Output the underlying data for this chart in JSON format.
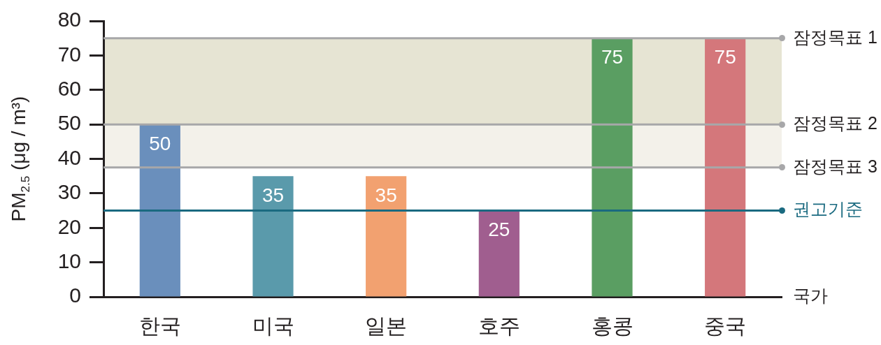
{
  "chart_data": {
    "type": "bar",
    "ylabel": "PM$_{2.5}$ (μg / m³)",
    "xlabel": "국가",
    "categories": [
      "한국",
      "미국",
      "일본",
      "호주",
      "홍콩",
      "중국"
    ],
    "values": [
      50,
      35,
      35,
      25,
      75,
      75
    ],
    "colors": [
      "#6a8fbc",
      "#5a9aab",
      "#f2a170",
      "#a05e8f",
      "#5a9e62",
      "#d4777b"
    ],
    "ylim": [
      0,
      80
    ],
    "yticks": [
      0,
      10,
      20,
      30,
      40,
      50,
      60,
      70,
      80
    ],
    "data_labels": true,
    "ref_lines": [
      {
        "axis": "y",
        "value": 75,
        "label": "잠정목표 1",
        "color": "#a7a7a9"
      },
      {
        "axis": "y",
        "value": 50,
        "label": "잠정목표 2",
        "color": "#a7a7a9"
      },
      {
        "axis": "y",
        "value": 37.5,
        "label": "잠정목표 3",
        "color": "#a7a7a9"
      },
      {
        "axis": "y",
        "value": 25,
        "label": "권고기준",
        "color": "#1a6a80"
      }
    ],
    "bands": [
      {
        "axis": "y",
        "from": 50,
        "to": 75,
        "color": "#e6e4d3"
      },
      {
        "axis": "y",
        "from": 37.5,
        "to": 50,
        "color": "#f3f1ea"
      }
    ]
  }
}
